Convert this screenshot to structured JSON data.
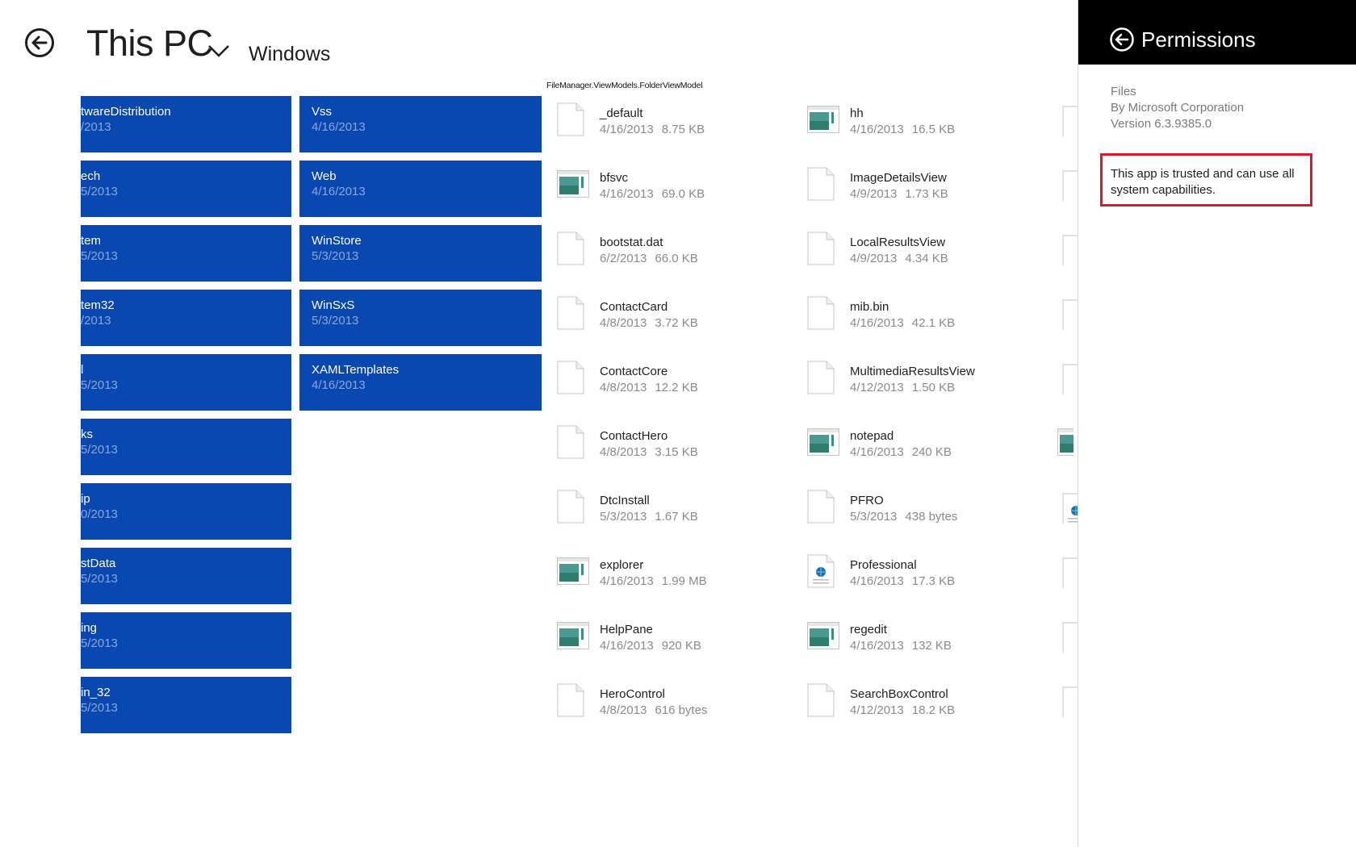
{
  "header": {
    "title": "This PC",
    "location": "Windows",
    "viewmodel_label": "FileManager.ViewModels.FolderViewModel"
  },
  "folders_col_a": [
    {
      "name": "twareDistribution",
      "date": "/2013"
    },
    {
      "name": "ech",
      "date": "5/2013"
    },
    {
      "name": "tem",
      "date": "5/2013"
    },
    {
      "name": "tem32",
      "date": "/2013"
    },
    {
      "name": "l",
      "date": "5/2013"
    },
    {
      "name": "ks",
      "date": "5/2013"
    },
    {
      "name": "ip",
      "date": "0/2013"
    },
    {
      "name": "stData",
      "date": "5/2013"
    },
    {
      "name": "ing",
      "date": "5/2013"
    },
    {
      "name": "in_32",
      "date": "5/2013"
    }
  ],
  "folders_col_b": [
    {
      "name": "Vss",
      "date": "4/16/2013"
    },
    {
      "name": "Web",
      "date": "4/16/2013"
    },
    {
      "name": "WinStore",
      "date": "5/3/2013"
    },
    {
      "name": "WinSxS",
      "date": "5/3/2013"
    },
    {
      "name": "XAMLTemplates",
      "date": "4/16/2013"
    }
  ],
  "files_col_1": [
    {
      "name": "_default",
      "date": "4/16/2013",
      "size": "8.75 KB",
      "icon": "blank-file-icon"
    },
    {
      "name": "bfsvc",
      "date": "4/16/2013",
      "size": "69.0 KB",
      "icon": "application-icon"
    },
    {
      "name": "bootstat.dat",
      "date": "6/2/2013",
      "size": "66.0 KB",
      "icon": "blank-file-icon"
    },
    {
      "name": "ContactCard",
      "date": "4/8/2013",
      "size": "3.72 KB",
      "icon": "blank-file-icon"
    },
    {
      "name": "ContactCore",
      "date": "4/8/2013",
      "size": "12.2 KB",
      "icon": "blank-file-icon"
    },
    {
      "name": "ContactHero",
      "date": "4/8/2013",
      "size": "3.15 KB",
      "icon": "blank-file-icon"
    },
    {
      "name": "DtcInstall",
      "date": "5/3/2013",
      "size": "1.67 KB",
      "icon": "blank-file-icon"
    },
    {
      "name": "explorer",
      "date": "4/16/2013",
      "size": "1.99 MB",
      "icon": "application-icon"
    },
    {
      "name": "HelpPane",
      "date": "4/16/2013",
      "size": "920 KB",
      "icon": "application-icon"
    },
    {
      "name": "HeroControl",
      "date": "4/8/2013",
      "size": "616 bytes",
      "icon": "blank-file-icon"
    }
  ],
  "files_col_2": [
    {
      "name": "hh",
      "date": "4/16/2013",
      "size": "16.5 KB",
      "icon": "application-icon"
    },
    {
      "name": "ImageDetailsView",
      "date": "4/9/2013",
      "size": "1.73 KB",
      "icon": "blank-file-icon"
    },
    {
      "name": "LocalResultsView",
      "date": "4/9/2013",
      "size": "4.34 KB",
      "icon": "blank-file-icon"
    },
    {
      "name": "mib.bin",
      "date": "4/16/2013",
      "size": "42.1 KB",
      "icon": "blank-file-icon"
    },
    {
      "name": "MultimediaResultsView",
      "date": "4/12/2013",
      "size": "1.50 KB",
      "icon": "blank-file-icon"
    },
    {
      "name": "notepad",
      "date": "4/16/2013",
      "size": "240 KB",
      "icon": "application-icon"
    },
    {
      "name": "PFRO",
      "date": "5/3/2013",
      "size": "438 bytes",
      "icon": "blank-file-icon"
    },
    {
      "name": "Professional",
      "date": "4/16/2013",
      "size": "17.3 KB",
      "icon": "web-document-icon"
    },
    {
      "name": "regedit",
      "date": "4/16/2013",
      "size": "132 KB",
      "icon": "application-icon"
    },
    {
      "name": "SearchBoxControl",
      "date": "4/12/2013",
      "size": "18.2 KB",
      "icon": "blank-file-icon"
    }
  ],
  "partial_col_icons": [
    "blank-file-icon",
    "blank-file-icon",
    "blank-file-icon",
    "blank-file-icon",
    "blank-file-icon",
    "application-icon",
    "web-document-icon",
    "blank-file-icon",
    "blank-file-icon",
    "blank-file-icon"
  ],
  "pane": {
    "title": "Permissions",
    "app_name": "Files",
    "publisher": "By Microsoft Corporation",
    "version": "Version 6.3.9385.0",
    "trusted_text": "This app is trusted and can use all system capabilities."
  },
  "colors": {
    "folder_tile": "#0a48b1",
    "folder_date": "#8ba6d8",
    "highlight_border": "#e0152b",
    "pane_header": "#000000"
  }
}
